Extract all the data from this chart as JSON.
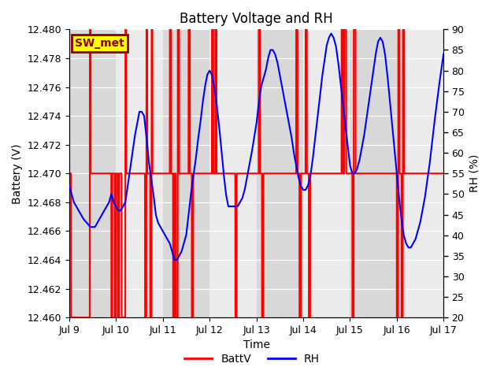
{
  "title": "Battery Voltage and RH",
  "xlabel": "Time",
  "ylabel_left": "Battery (V)",
  "ylabel_right": "RH (%)",
  "ylim_left": [
    12.46,
    12.48
  ],
  "ylim_right": [
    20,
    90
  ],
  "yticks_left": [
    12.46,
    12.462,
    12.464,
    12.466,
    12.468,
    12.47,
    12.472,
    12.474,
    12.476,
    12.478,
    12.48
  ],
  "yticks_right": [
    20,
    25,
    30,
    35,
    40,
    45,
    50,
    55,
    60,
    65,
    70,
    75,
    80,
    85,
    90
  ],
  "xtick_labels": [
    "Jul 9",
    "Jul 10",
    "Jul 11",
    "Jul 12",
    "Jul 13",
    "Jul 14",
    "Jul 15",
    "Jul 16",
    "Jul 17"
  ],
  "background_color": "#ffffff",
  "plot_bg_light": "#ebebeb",
  "plot_bg_dark": "#d8d8d8",
  "grid_color": "#ffffff",
  "annotation_text": "SW_met",
  "annotation_bg": "#ffff00",
  "annotation_border": "#8b0000",
  "legend_entries": [
    "BattV",
    "RH"
  ],
  "legend_colors": [
    "#ff0000",
    "#0000ff"
  ],
  "batt_color": "#ff0000",
  "rh_color": "#0000ff",
  "batt_low": 12.46,
  "batt_mid": 12.47,
  "batt_high": 12.48
}
